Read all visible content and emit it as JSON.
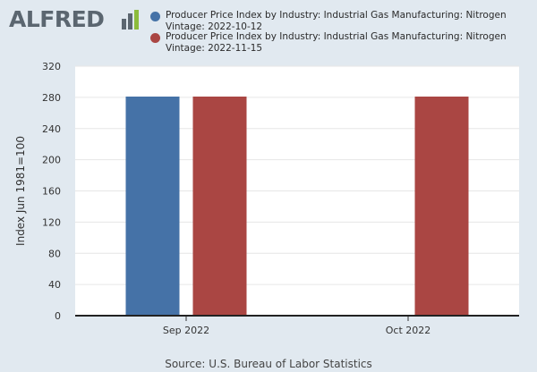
{
  "logo": {
    "text": "ALFRED"
  },
  "colors": {
    "background": "#e1e9f0",
    "plot_background": "#ffffff",
    "series_blue": "#4572a7",
    "series_red": "#aa4643",
    "logo_gray": "#5b6670",
    "logo_green": "#8cbc3c"
  },
  "source_text": "Source: U.S. Bureau of Labor Statistics",
  "chart_data": {
    "type": "bar",
    "title": "",
    "xlabel": "",
    "ylabel": "Index Jun 1981=100",
    "categories": [
      "Sep 2022",
      "Oct 2022"
    ],
    "ylim": [
      0,
      320
    ],
    "yticks": [
      0,
      40,
      80,
      120,
      160,
      200,
      240,
      280,
      320
    ],
    "grid": true,
    "legend_position": "top",
    "series": [
      {
        "name": "Producer Price Index by Industry: Industrial Gas Manufacturing: Nitrogen Vintage: 2022-10-12",
        "color": "#4572a7",
        "values": [
          281,
          null
        ]
      },
      {
        "name": "Producer Price Index by Industry: Industrial Gas Manufacturing: Nitrogen Vintage: 2022-11-15",
        "color": "#aa4643",
        "values": [
          281,
          281
        ]
      }
    ]
  }
}
